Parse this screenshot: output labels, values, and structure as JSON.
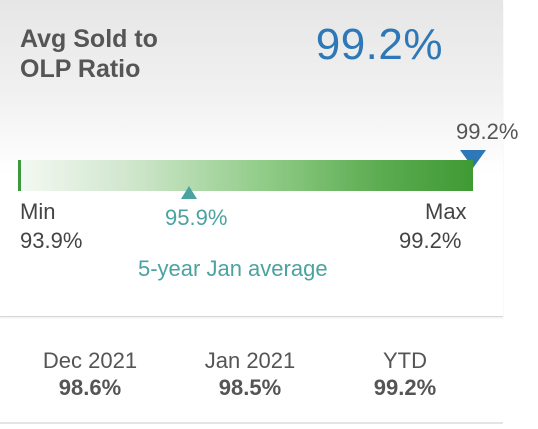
{
  "metric": {
    "title_line1": "Avg Sold to",
    "title_line2": "OLP Ratio",
    "current_value": "99.2%",
    "marker_value": "99.2%"
  },
  "range": {
    "min_label": "Min",
    "min_value": "93.9%",
    "max_label": "Max",
    "max_value": "99.2%",
    "average_value": "95.9%",
    "average_caption": "5-year Jan average",
    "colors": {
      "bar_start": "#f4f9f3",
      "bar_end": "#3f9a34",
      "marker": "#2e78b7",
      "average": "#4aa3a0",
      "value_accent": "#2e78b7"
    }
  },
  "comparisons": [
    {
      "label": "Dec 2021",
      "value": "98.6%"
    },
    {
      "label": "Jan 2021",
      "value": "98.5%"
    },
    {
      "label": "YTD",
      "value": "99.2%"
    }
  ]
}
